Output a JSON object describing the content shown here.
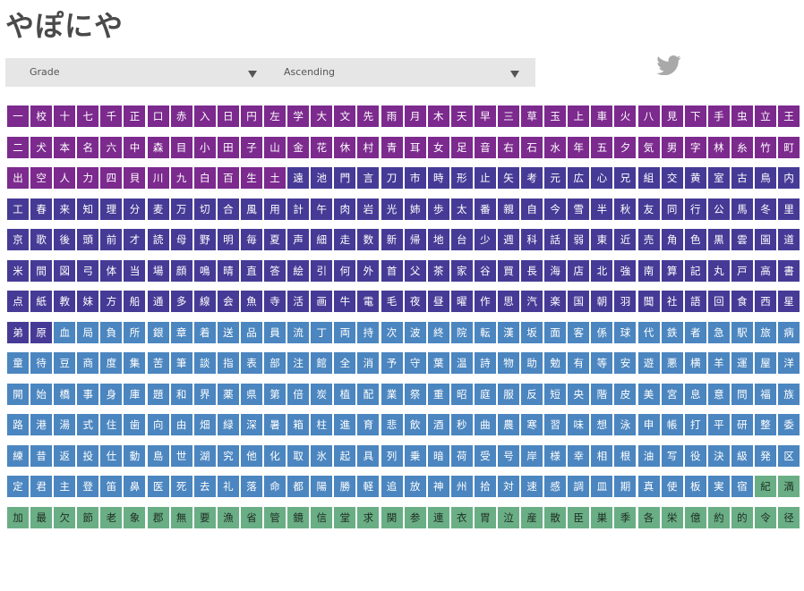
{
  "header": {
    "title": "やぽにや"
  },
  "controls": {
    "sort_field": {
      "selected": "Grade"
    },
    "sort_order": {
      "selected": "Ascending"
    }
  },
  "icons": {
    "share": "twitter-bird-icon"
  },
  "colors": {
    "grade1": "#7c2a8e",
    "grade2": "#453b96",
    "grade3": "#4b86c0",
    "grade4": "#6aae85"
  },
  "kanji_rows": [
    "一校十七千正口赤入日円左学大文先雨月木天早三草玉上車火八見下手虫立王",
    "二犬本名六中森目小田子山金花休村青耳女足音右石水年五夕気男字林糸竹町",
    "出空人力四貝川九白百生土遠池門言刀市時形止矢考元広心兄組交黄室古鳥内",
    "工春来知理分麦万切合風用計午肉岩光姉歩太番親自今雪半秋友同行公馬冬里",
    "京歌後頭前才読母野明毎夏声細走数新帰地台少週科話弱東近売角色黒雲園道",
    "米間図弓体当場顔鳴晴直答絵引何外首父茶家谷買長海店北強南算記丸戸高書",
    "点紙教妹方船通多線会魚寺活画牛電毛夜昼曜作思汽楽国朝羽聞社語回食西星",
    "弟原血局負所銀章着送品員流丁両持次波終院転漢坂面客係球代鉄者急駅旅病",
    "童待豆商度集苦筆談指表部注館全消予守葉温詩物助勉有等安遊悪横羊運屋洋",
    "開始橋事身庫題和界薬県第倍炭植配業祭重昭庭服反短央階皮美宮息意問福族",
    "路港湯式住歯向由畑緑深暑箱柱進育悲飲酒秒曲農寒習味想泳申帳打平研整委",
    "練昔返投仕動島世湖究他化取氷起具列乗暗荷受号岸様幸相根油写役決級発区",
    "定君主登笛鼻医死去礼落命都陽勝軽追放神州拾対速感調皿期真使板実宿紀満",
    "加最欠節老象郡無要漁省管鏡信堂求関参連衣胃泣産散臣巣季各栄億約的令径"
  ]
}
